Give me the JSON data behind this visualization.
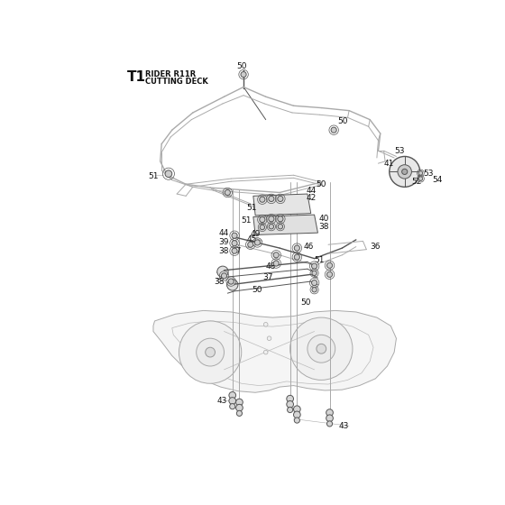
{
  "title_bold": "T1",
  "title_sub1": "RIDER R11R",
  "title_sub2": "CUTTING DECK",
  "bg_color": "#ffffff",
  "lc": "#aaaaaa",
  "dc": "#555555",
  "fig_w": 5.6,
  "fig_h": 5.6,
  "dpi": 100
}
